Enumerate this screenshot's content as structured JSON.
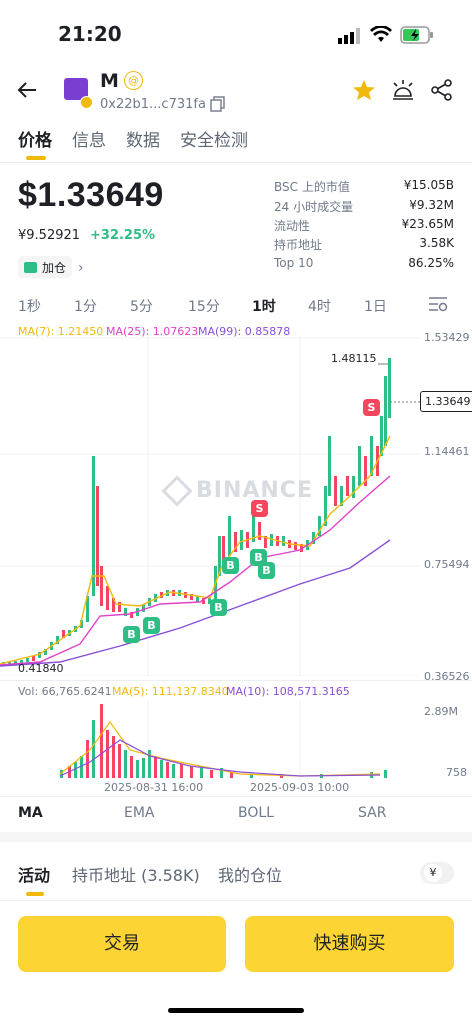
{
  "status": {
    "time": "21:20"
  },
  "header": {
    "token_name": "M",
    "address": "0x22b1...c731fa"
  },
  "tabs": [
    "价格",
    "信息",
    "数据",
    "安全检测"
  ],
  "price": {
    "main": "$1.33649",
    "cny": "¥9.52921",
    "change": "+32.25%",
    "add_position": "加仓"
  },
  "stats": [
    {
      "label": "BSC 上的市值",
      "value": "¥15.05B"
    },
    {
      "label": "24 小时成交量",
      "value": "¥9.32M"
    },
    {
      "label": "流动性",
      "value": "¥23.65M"
    },
    {
      "label": "持币地址",
      "value": "3.58K"
    },
    {
      "label": "Top 10",
      "value": "86.25%"
    }
  ],
  "intervals": [
    "1秒",
    "1分",
    "5分",
    "15分",
    "1时",
    "4时",
    "1日"
  ],
  "active_interval": "1时",
  "ma": {
    "ma7": "MA(7): 1.21450",
    "ma25": "MA(25): 1.07623",
    "ma99": "MA(99): 0.85878"
  },
  "axis": {
    "y1": "1.53429",
    "y2": "1.14461",
    "y3": "0.75494",
    "y4": "0.36526",
    "current": "1.33649",
    "high": "1.48115",
    "low": "0.41840"
  },
  "watermark": "BINANCE",
  "volume": {
    "vol": "Vol: 66,765.6241",
    "ma5": "MA(5): 111,137.8340",
    "ma10": "MA(10): 108,571.3165",
    "ytop": "2.89M",
    "ybot": "758"
  },
  "dates": {
    "d1": "2025-08-31 16:00",
    "d2": "2025-09-03 10:00"
  },
  "indicators": [
    "MA",
    "EMA",
    "BOLL",
    "SAR"
  ],
  "activity_tabs": [
    "活动",
    "持币地址 (3.58K)",
    "我的仓位"
  ],
  "currency": "¥",
  "buttons": {
    "trade": "交易",
    "quick_buy": "快速购买"
  },
  "colors": {
    "up": "#2ebd85",
    "down": "#f6465d",
    "accent": "#f0b90b",
    "button": "#fcd535",
    "ma7": "#f0b90b",
    "ma25": "#e042c8",
    "ma99": "#8a4fd8"
  }
}
